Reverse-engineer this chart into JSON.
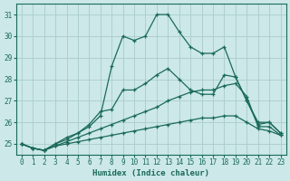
{
  "xlabel": "Humidex (Indice chaleur)",
  "background_color": "#cce8e8",
  "grid_color": "#aacccc",
  "line_color": "#1a6a5a",
  "ylim": [
    24.5,
    31.5
  ],
  "xlim": [
    -0.5,
    23.5
  ],
  "yticks": [
    25,
    26,
    27,
    28,
    29,
    30,
    31
  ],
  "xticks": [
    0,
    1,
    2,
    3,
    4,
    5,
    6,
    7,
    8,
    9,
    10,
    11,
    12,
    13,
    14,
    15,
    16,
    17,
    18,
    19,
    20,
    21,
    22,
    23
  ],
  "series": [
    [
      25.0,
      24.8,
      24.7,
      25.0,
      25.3,
      25.5,
      25.8,
      26.3,
      28.6,
      30.0,
      29.8,
      30.0,
      31.0,
      31.0,
      30.2,
      29.5,
      29.2,
      29.2,
      29.5,
      28.1,
      27.0,
      26.0,
      26.0,
      25.5
    ],
    [
      25.0,
      24.8,
      24.7,
      25.0,
      25.2,
      25.5,
      25.9,
      26.5,
      26.6,
      27.5,
      27.5,
      27.8,
      28.2,
      28.5,
      28.0,
      27.5,
      27.3,
      27.3,
      28.2,
      28.1,
      27.0,
      25.9,
      26.0,
      25.5
    ],
    [
      25.0,
      24.8,
      24.7,
      24.9,
      25.1,
      25.3,
      25.5,
      25.7,
      25.9,
      26.1,
      26.3,
      26.5,
      26.7,
      27.0,
      27.2,
      27.4,
      27.5,
      27.5,
      27.7,
      27.8,
      27.2,
      25.8,
      25.8,
      25.4
    ],
    [
      25.0,
      24.8,
      24.7,
      24.9,
      25.0,
      25.1,
      25.2,
      25.3,
      25.4,
      25.5,
      25.6,
      25.7,
      25.8,
      25.9,
      26.0,
      26.1,
      26.2,
      26.2,
      26.3,
      26.3,
      26.0,
      25.7,
      25.6,
      25.4
    ]
  ]
}
